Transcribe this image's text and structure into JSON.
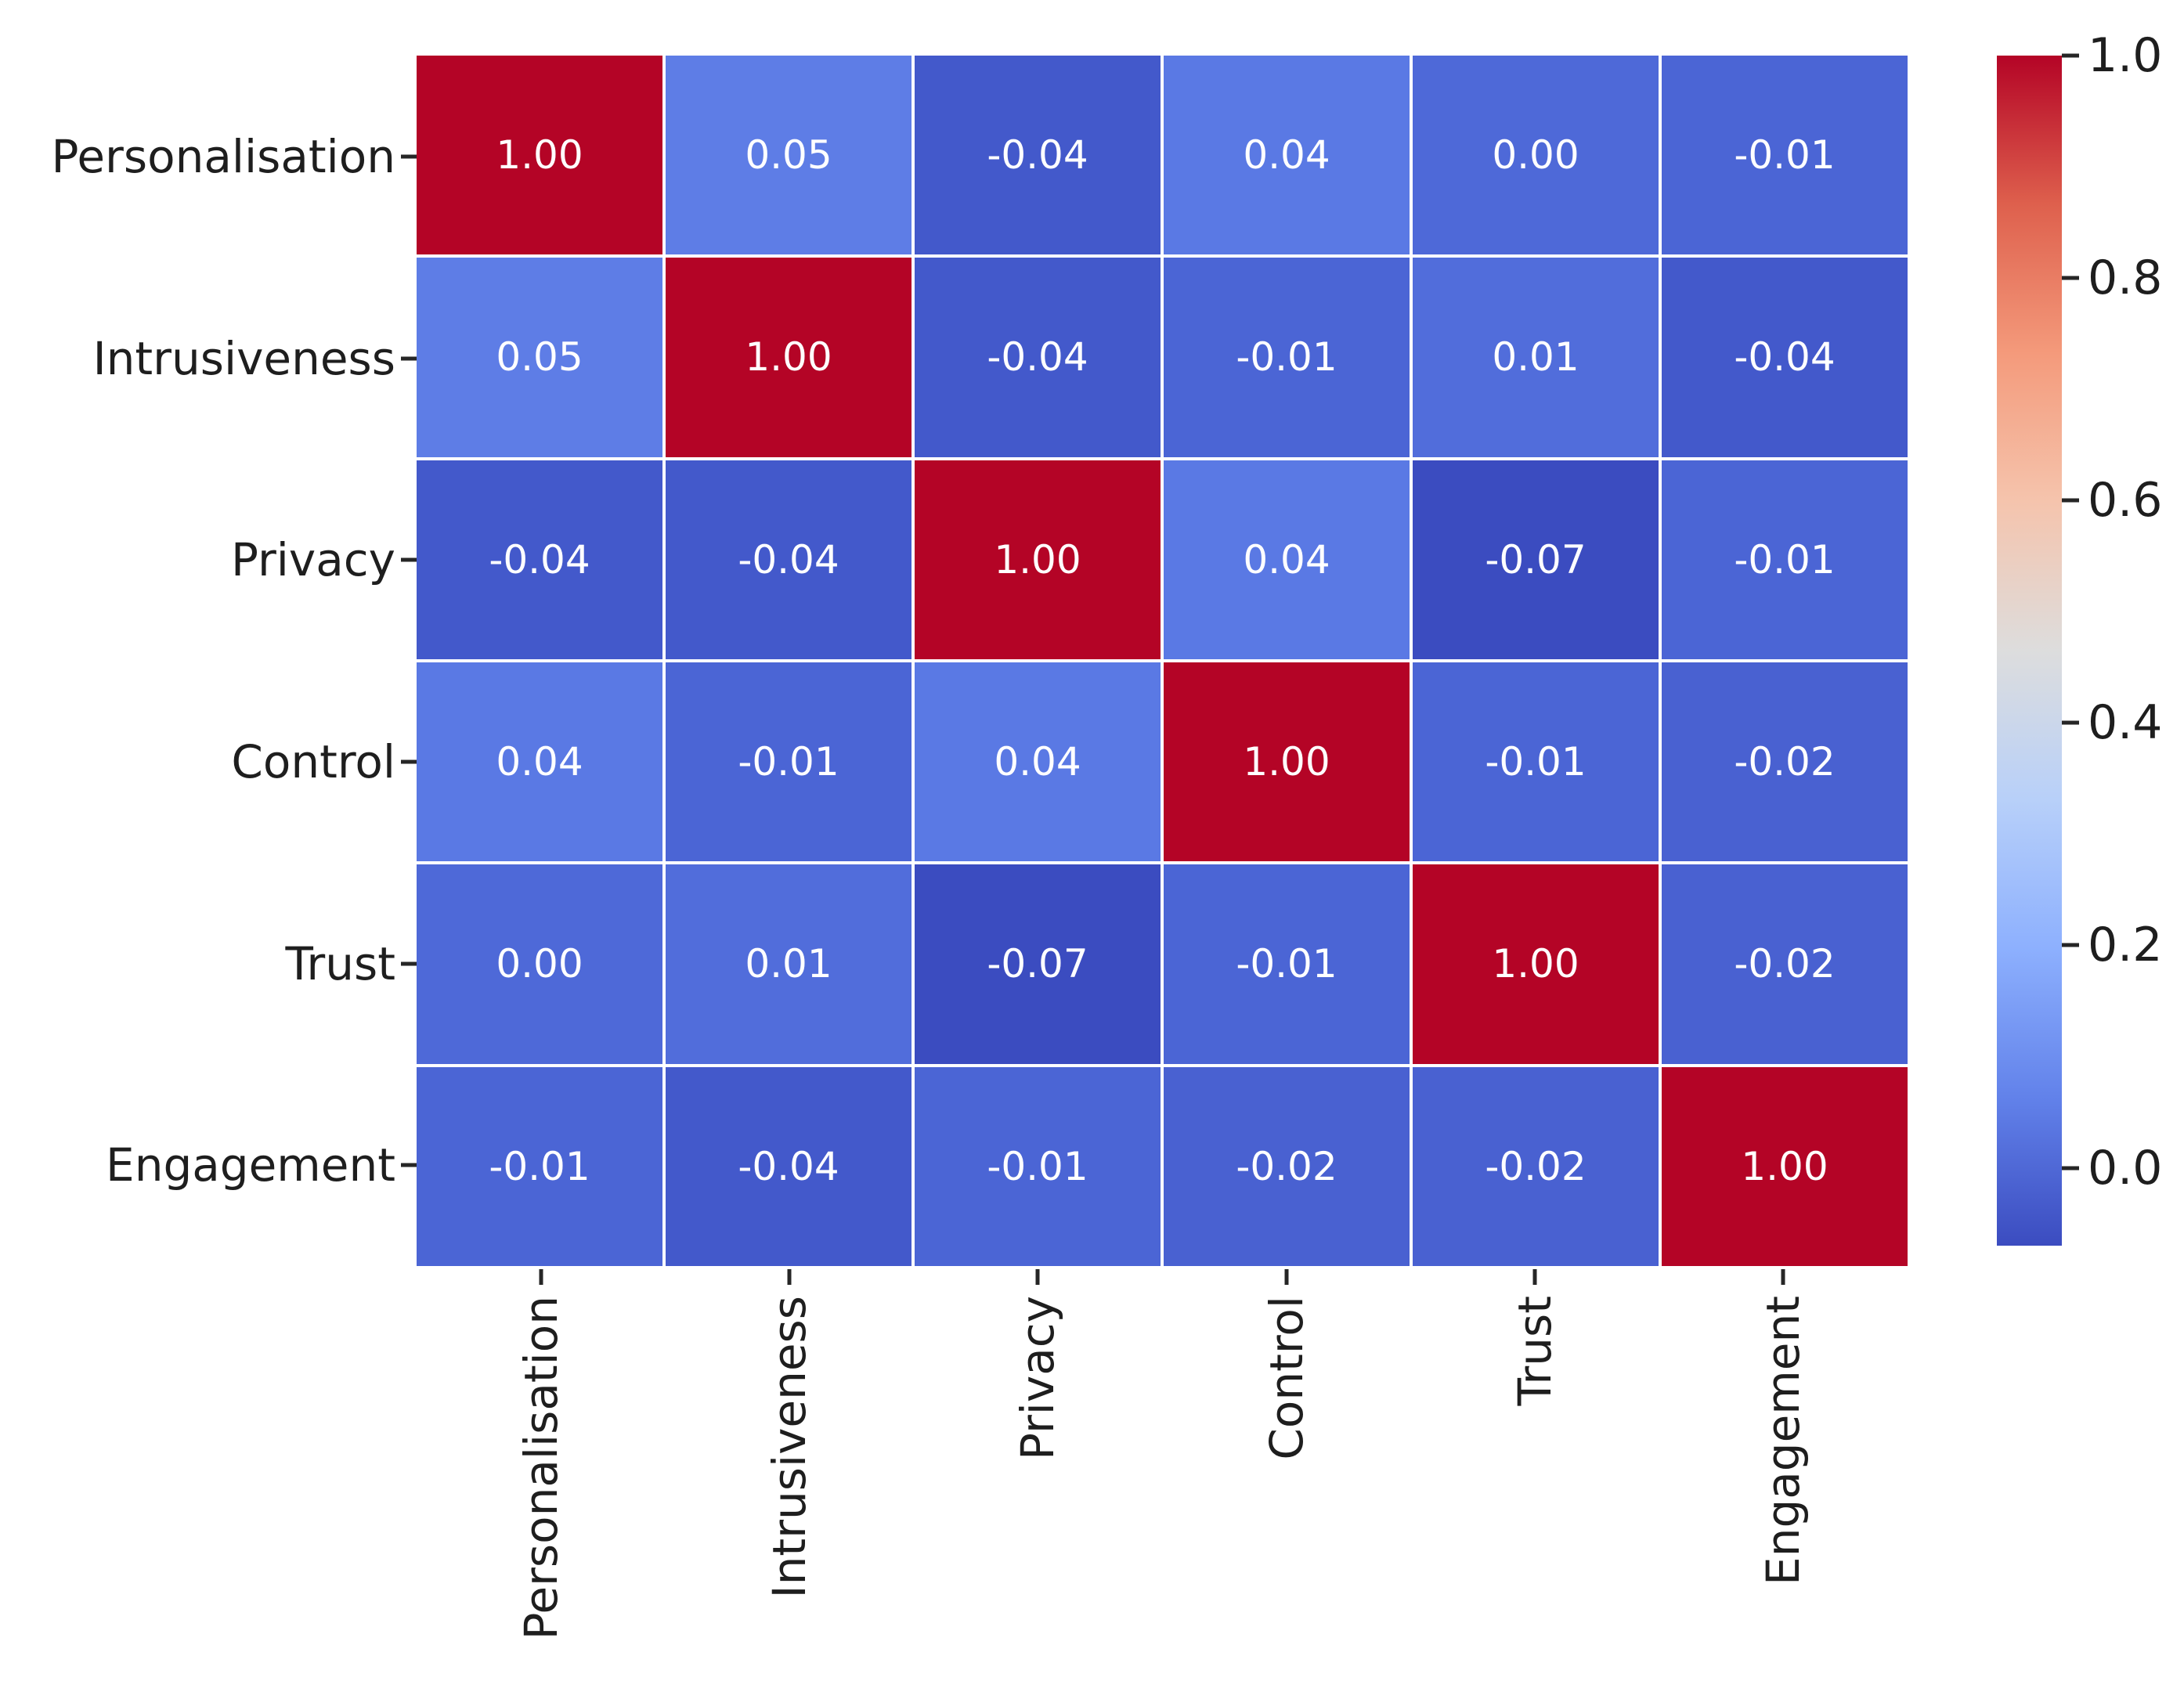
{
  "chart_data": {
    "type": "heatmap",
    "title": "",
    "x_categories": [
      "Personalisation",
      "Intrusiveness",
      "Privacy",
      "Control",
      "Trust",
      "Engagement"
    ],
    "y_categories": [
      "Personalisation",
      "Intrusiveness",
      "Privacy",
      "Control",
      "Trust",
      "Engagement"
    ],
    "matrix": [
      [
        1.0,
        0.05,
        -0.04,
        0.04,
        0.0,
        -0.01
      ],
      [
        0.05,
        1.0,
        -0.04,
        -0.01,
        0.01,
        -0.04
      ],
      [
        -0.04,
        -0.04,
        1.0,
        0.04,
        -0.07,
        -0.01
      ],
      [
        0.04,
        -0.01,
        0.04,
        1.0,
        -0.01,
        -0.02
      ],
      [
        0.0,
        0.01,
        -0.07,
        -0.01,
        1.0,
        -0.02
      ],
      [
        -0.01,
        -0.04,
        -0.01,
        -0.02,
        -0.02,
        1.0
      ]
    ],
    "cell_label_format": ".2f",
    "x_tick_rotation_deg": 90,
    "colormap": "coolwarm",
    "vmin": -0.07,
    "vmax": 1.0,
    "grid_on": false,
    "colorbar": {
      "position": "right",
      "tick_values": [
        1.0,
        0.8,
        0.6,
        0.4,
        0.2,
        0.0
      ],
      "tick_labels": [
        "1.0",
        "0.8",
        "0.6",
        "0.4",
        "0.2",
        "0.0"
      ],
      "gradient_top_to_bottom": [
        "#b40426",
        "#de604d",
        "#f49a7b",
        "#f5c4ad",
        "#dddddd",
        "#b8d0f9",
        "#8db0fe",
        "#6282ea",
        "#3b4cc0"
      ]
    },
    "styles": {
      "background": "#ffffff",
      "grid_line_color": "#ffffff",
      "cell_text_color": "#ffffff",
      "axis_text_color": "#1e1e1e",
      "tick_mark_color": "#262626",
      "value_colors": {
        "1.00": "#b40426",
        "0.05": "#5e7de6",
        "0.04": "#5a79e4",
        "0.01": "#516ddb",
        "0.00": "#4e69d8",
        "-0.01": "#4b65d5",
        "-0.02": "#4961d1",
        "-0.04": "#4359cb",
        "-0.07": "#3b4cc0"
      }
    }
  }
}
